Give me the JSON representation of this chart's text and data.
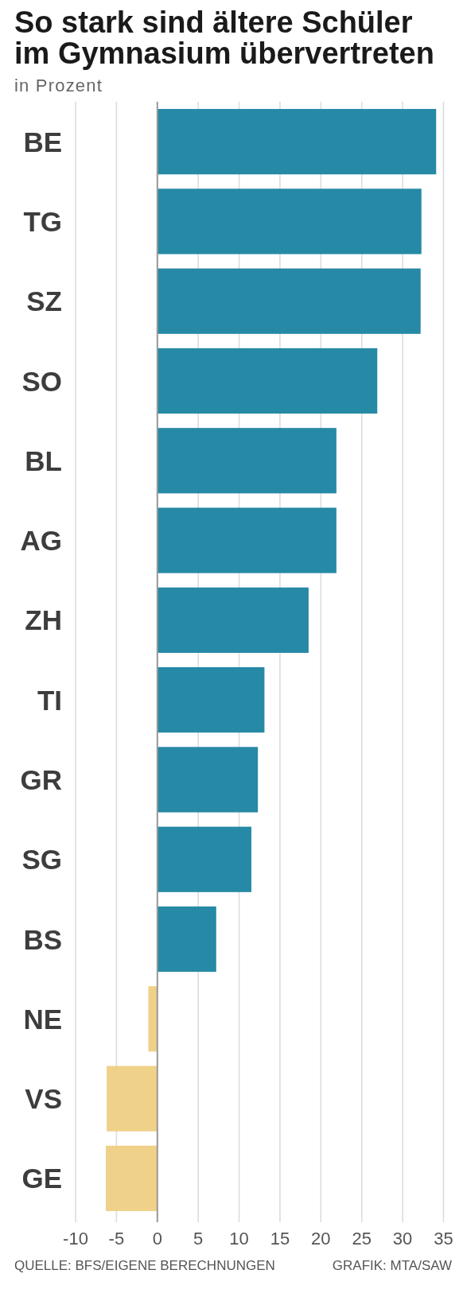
{
  "chart_data": {
    "type": "bar",
    "orientation": "horizontal",
    "title": "So stark sind ältere Schüler im Gymnasium übervertreten",
    "subtitle": "in Prozent",
    "categories": [
      "BE",
      "TG",
      "SZ",
      "SO",
      "BL",
      "AG",
      "ZH",
      "TI",
      "GR",
      "SG",
      "BS",
      "NE",
      "VS",
      "GE"
    ],
    "values": [
      34.1,
      32.3,
      32.2,
      26.9,
      21.9,
      21.9,
      18.5,
      13.1,
      12.3,
      11.5,
      7.2,
      -1.1,
      -6.2,
      -6.3
    ],
    "colors": [
      "#2689a6",
      "#2689a6",
      "#2689a6",
      "#2689a6",
      "#2689a6",
      "#2689a6",
      "#2689a6",
      "#2689a6",
      "#2689a6",
      "#2689a6",
      "#2689a6",
      "#f0d189",
      "#f0d189",
      "#f0d189"
    ],
    "xlim": [
      -10,
      35
    ],
    "xticks": [
      -10,
      -5,
      0,
      5,
      10,
      15,
      20,
      25,
      30,
      35
    ],
    "grid": "x",
    "annotations": [
      "QUELLE: BFS/EIGENE BERECHNUNGEN",
      "GRAFIK: MTA/SAW"
    ]
  }
}
